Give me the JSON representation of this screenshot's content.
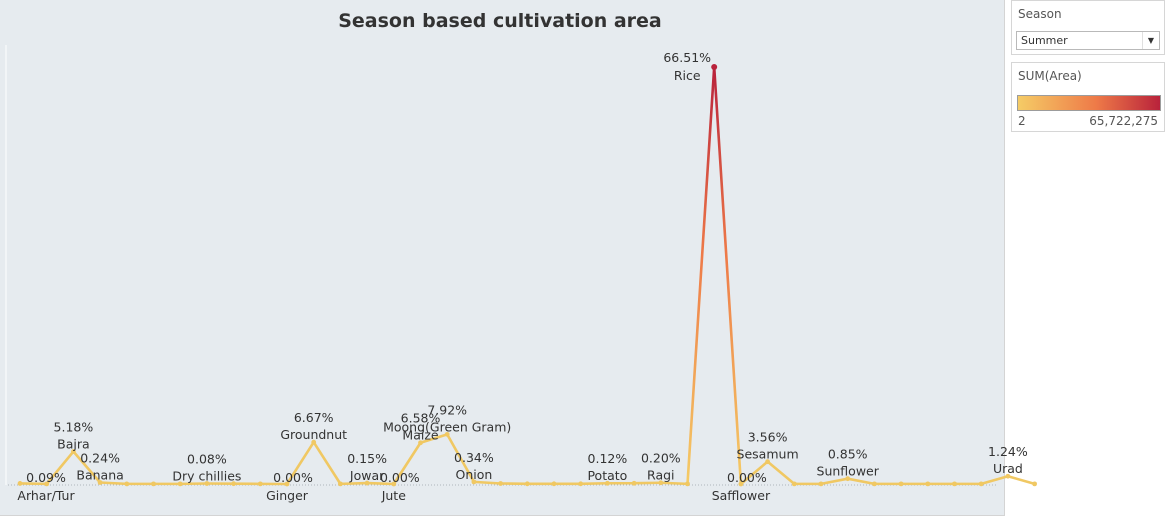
{
  "title": "Season based cultivation area",
  "filter": {
    "label": "Season",
    "selected": "Summer"
  },
  "legend": {
    "title": "SUM(Area)",
    "min": "2",
    "max": "65,722,275",
    "color_low": "#f5cc66",
    "color_mid": "#ee7a48",
    "color_high": "#b9223b"
  },
  "colors": {
    "background": "#e6ebef",
    "line": "#f0c863"
  },
  "chart_data": {
    "type": "line",
    "title": "Season based cultivation area",
    "measure": "percent of total SUM(Area)",
    "ylim": [
      0,
      66.51
    ],
    "points": [
      {
        "crop": "Arhar/Tur",
        "value": 0.09,
        "label_pct": "0.09%",
        "label_crop": "Arhar/Tur"
      },
      {
        "crop": "",
        "value": 0.02
      },
      {
        "crop": "Bajra",
        "value": 5.18,
        "label_pct": "5.18%",
        "label_crop": "Bajra"
      },
      {
        "crop": "Banana",
        "value": 0.24,
        "label_pct": "0.24%",
        "label_crop": "Banana"
      },
      {
        "crop": "",
        "value": 0.02
      },
      {
        "crop": "",
        "value": 0.02
      },
      {
        "crop": "",
        "value": 0.02
      },
      {
        "crop": "Dry chillies",
        "value": 0.08,
        "label_pct": "0.08%",
        "label_crop": "Dry chillies"
      },
      {
        "crop": "",
        "value": 0.05
      },
      {
        "crop": "",
        "value": 0.02
      },
      {
        "crop": "Ginger",
        "value": 0.0,
        "label_pct": "0.00%",
        "label_crop": "Ginger"
      },
      {
        "crop": "Groundnut",
        "value": 6.67,
        "label_pct": "6.67%",
        "label_crop": "Groundnut"
      },
      {
        "crop": "",
        "value": 0.02
      },
      {
        "crop": "Jowar",
        "value": 0.15,
        "label_pct": "0.15%",
        "label_crop": "Jowar"
      },
      {
        "crop": "Jute",
        "value": 0.0,
        "label_pct": "0.00%",
        "label_crop": "Jute"
      },
      {
        "crop": "Maize",
        "value": 6.58,
        "label_pct": "6.58%",
        "label_crop": "Maize"
      },
      {
        "crop": "Moong(Green Gram)",
        "value": 7.92,
        "label_pct": "7.92%",
        "label_crop": "Moong(Green Gram)"
      },
      {
        "crop": "Onion",
        "value": 0.34,
        "label_pct": "0.34%",
        "label_crop": "Onion"
      },
      {
        "crop": "",
        "value": 0.08
      },
      {
        "crop": "",
        "value": 0.03
      },
      {
        "crop": "",
        "value": 0.03
      },
      {
        "crop": "",
        "value": 0.03
      },
      {
        "crop": "Potato",
        "value": 0.12,
        "label_pct": "0.12%",
        "label_crop": "Potato"
      },
      {
        "crop": "",
        "value": 0.12
      },
      {
        "crop": "Ragi",
        "value": 0.2,
        "label_pct": "0.20%",
        "label_crop": "Ragi"
      },
      {
        "crop": "",
        "value": 0.02
      },
      {
        "crop": "Rice",
        "value": 66.51,
        "label_pct": "66.51%",
        "label_crop": "Rice"
      },
      {
        "crop": "Safflower",
        "value": 0.0,
        "label_pct": "0.00%",
        "label_crop": "Safflower"
      },
      {
        "crop": "Sesamum",
        "value": 3.56,
        "label_pct": "3.56%",
        "label_crop": "Sesamum"
      },
      {
        "crop": "",
        "value": 0.02
      },
      {
        "crop": "",
        "value": 0.02
      },
      {
        "crop": "Sunflower",
        "value": 0.85,
        "label_pct": "0.85%",
        "label_crop": "Sunflower"
      },
      {
        "crop": "",
        "value": 0.02
      },
      {
        "crop": "",
        "value": 0.02
      },
      {
        "crop": "",
        "value": 0.02
      },
      {
        "crop": "",
        "value": 0.02
      },
      {
        "crop": "",
        "value": 0.02
      },
      {
        "crop": "Urad",
        "value": 1.24,
        "label_pct": "1.24%",
        "label_crop": "Urad"
      },
      {
        "crop": "",
        "value": 0.02
      }
    ]
  }
}
